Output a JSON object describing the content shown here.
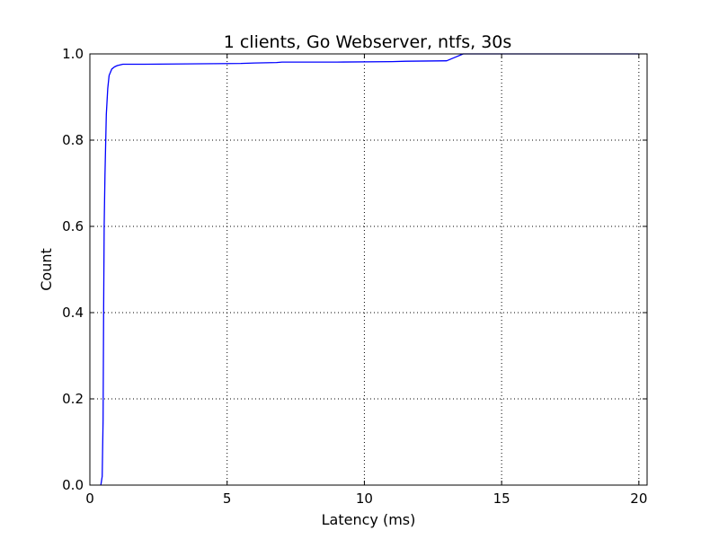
{
  "chart_data": {
    "type": "line",
    "title": "1 clients, Go Webserver, ntfs, 30s",
    "xlabel": "Latency (ms)",
    "ylabel": "Count",
    "xlim": [
      0,
      20.3
    ],
    "ylim": [
      0,
      1.0
    ],
    "grid": true,
    "legend": "none",
    "x_ticks": [
      0,
      5,
      10,
      15,
      20
    ],
    "y_ticks": [
      0.0,
      0.2,
      0.4,
      0.6,
      0.8,
      1.0
    ],
    "x_tick_labels": [
      "0",
      "5",
      "10",
      "15",
      "20"
    ],
    "y_tick_labels": [
      "0.0",
      "0.2",
      "0.4",
      "0.6",
      "0.8",
      "1.0"
    ],
    "series": [
      {
        "color": "#0000ff",
        "x": [
          0.4,
          0.45,
          0.48,
          0.5,
          0.52,
          0.55,
          0.6,
          0.65,
          0.7,
          0.8,
          0.9,
          1.0,
          1.2,
          2.0,
          4.0,
          5.5,
          6.0,
          6.8,
          7.0,
          9.0,
          11.0,
          11.5,
          13.0,
          13.3,
          13.6,
          20.0
        ],
        "y": [
          0.0,
          0.02,
          0.15,
          0.4,
          0.6,
          0.72,
          0.86,
          0.92,
          0.95,
          0.965,
          0.97,
          0.973,
          0.976,
          0.976,
          0.977,
          0.978,
          0.979,
          0.98,
          0.981,
          0.981,
          0.982,
          0.983,
          0.984,
          0.992,
          1.0,
          1.0
        ]
      }
    ]
  }
}
